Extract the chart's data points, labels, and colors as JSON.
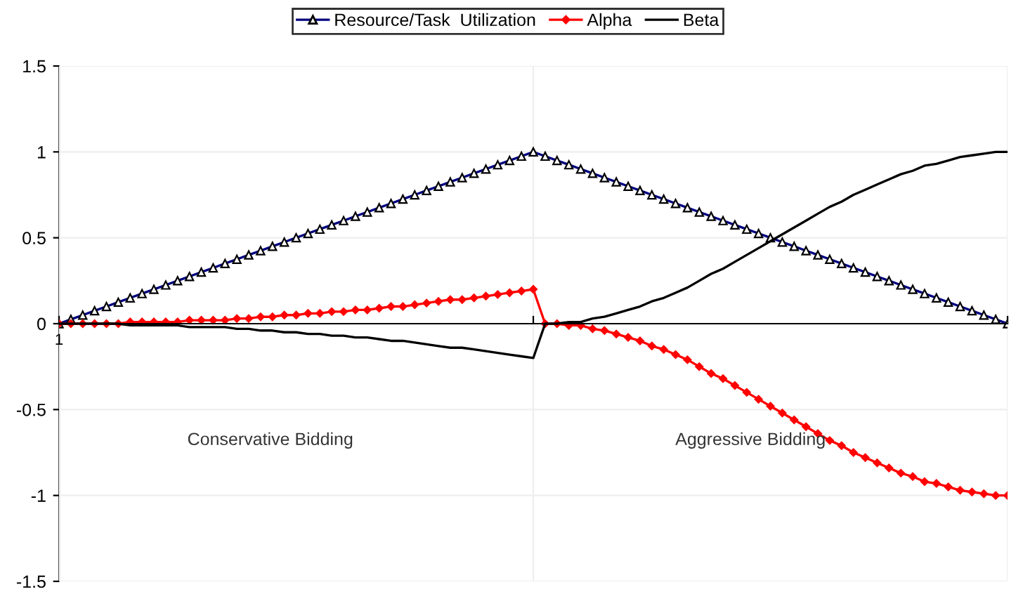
{
  "chart_data": {
    "type": "line",
    "categories": [
      "1",
      null,
      null,
      null,
      null,
      null,
      null,
      null,
      null,
      null,
      null,
      null,
      null,
      null,
      null,
      null,
      null,
      null,
      null,
      null,
      null,
      null,
      null,
      null,
      null,
      null,
      null,
      null,
      null,
      null,
      null,
      null,
      null,
      null,
      null,
      null,
      null,
      null,
      null,
      null,
      null,
      null,
      null,
      null,
      null,
      null,
      null,
      null,
      null,
      null,
      null,
      null,
      null,
      null,
      null,
      null,
      null,
      null,
      null,
      null,
      null,
      null,
      null,
      null,
      null,
      null,
      null,
      null,
      null,
      null,
      null,
      null,
      null,
      null,
      null,
      null,
      null,
      null,
      null,
      null,
      null
    ],
    "series": [
      {
        "name": "Resource/Task  Utilization",
        "color": "#000080",
        "marker": "triangle",
        "values": [
          0,
          0.025,
          0.05,
          0.075,
          0.1,
          0.125,
          0.15,
          0.175,
          0.2,
          0.225,
          0.25,
          0.275,
          0.3,
          0.325,
          0.35,
          0.375,
          0.4,
          0.425,
          0.45,
          0.475,
          0.5,
          0.525,
          0.55,
          0.575,
          0.6,
          0.625,
          0.65,
          0.675,
          0.7,
          0.725,
          0.75,
          0.775,
          0.8,
          0.825,
          0.85,
          0.875,
          0.9,
          0.925,
          0.95,
          0.975,
          1,
          0.975,
          0.95,
          0.925,
          0.9,
          0.875,
          0.85,
          0.825,
          0.8,
          0.775,
          0.75,
          0.725,
          0.7,
          0.675,
          0.65,
          0.625,
          0.6,
          0.575,
          0.55,
          0.525,
          0.5,
          0.475,
          0.45,
          0.425,
          0.4,
          0.375,
          0.35,
          0.325,
          0.3,
          0.275,
          0.25,
          0.225,
          0.2,
          0.175,
          0.15,
          0.125,
          0.1,
          0.075,
          0.05,
          0.025,
          0
        ]
      },
      {
        "name": "Alpha",
        "color": "#ff0000",
        "marker": "diamond",
        "values": [
          0,
          0,
          0,
          0,
          0,
          0,
          0.01,
          0.01,
          0.01,
          0.01,
          0.01,
          0.02,
          0.02,
          0.02,
          0.02,
          0.03,
          0.03,
          0.04,
          0.04,
          0.05,
          0.05,
          0.06,
          0.06,
          0.07,
          0.07,
          0.08,
          0.08,
          0.09,
          0.1,
          0.1,
          0.11,
          0.12,
          0.13,
          0.14,
          0.14,
          0.15,
          0.16,
          0.17,
          0.18,
          0.19,
          0.2,
          0,
          0,
          -0.01,
          -0.01,
          -0.03,
          -0.04,
          -0.06,
          -0.08,
          -0.1,
          -0.13,
          -0.15,
          -0.18,
          -0.21,
          -0.25,
          -0.29,
          -0.32,
          -0.36,
          -0.4,
          -0.44,
          -0.48,
          -0.52,
          -0.56,
          -0.6,
          -0.64,
          -0.68,
          -0.71,
          -0.75,
          -0.78,
          -0.81,
          -0.84,
          -0.87,
          -0.89,
          -0.92,
          -0.93,
          -0.95,
          -0.97,
          -0.98,
          -0.99,
          -1,
          -1
        ]
      },
      {
        "name": "Beta",
        "color": "#000000",
        "marker": "none",
        "values": [
          0,
          0,
          0,
          0,
          0,
          0,
          -0.01,
          -0.01,
          -0.01,
          -0.01,
          -0.01,
          -0.02,
          -0.02,
          -0.02,
          -0.02,
          -0.03,
          -0.03,
          -0.04,
          -0.04,
          -0.05,
          -0.05,
          -0.06,
          -0.06,
          -0.07,
          -0.07,
          -0.08,
          -0.08,
          -0.09,
          -0.1,
          -0.1,
          -0.11,
          -0.12,
          -0.13,
          -0.14,
          -0.14,
          -0.15,
          -0.16,
          -0.17,
          -0.18,
          -0.19,
          -0.2,
          0,
          0,
          0.01,
          0.01,
          0.03,
          0.04,
          0.06,
          0.08,
          0.1,
          0.13,
          0.15,
          0.18,
          0.21,
          0.25,
          0.29,
          0.32,
          0.36,
          0.4,
          0.44,
          0.48,
          0.52,
          0.56,
          0.6,
          0.64,
          0.68,
          0.71,
          0.75,
          0.78,
          0.81,
          0.84,
          0.87,
          0.89,
          0.92,
          0.93,
          0.95,
          0.97,
          0.98,
          0.99,
          1,
          1
        ]
      }
    ],
    "ylim": [
      -1.5,
      1.5
    ],
    "yticks": [
      -1.5,
      -1,
      -0.5,
      0,
      0.5,
      1,
      1.5
    ],
    "grid": true,
    "legend": "top",
    "annotations": [
      "Conservative Bidding",
      "Aggressive Bidding"
    ]
  }
}
